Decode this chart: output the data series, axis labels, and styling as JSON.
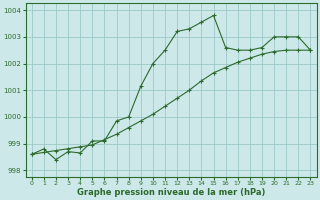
{
  "line1_x": [
    0,
    1,
    2,
    3,
    4,
    5,
    6,
    7,
    8,
    9,
    10,
    11,
    12,
    13,
    14,
    15,
    16,
    17,
    18,
    19,
    20,
    21,
    22,
    23
  ],
  "line1_y": [
    998.6,
    998.8,
    998.4,
    998.7,
    998.65,
    999.1,
    999.1,
    999.85,
    1000.0,
    1001.15,
    1002.0,
    1002.5,
    1003.2,
    1003.3,
    1003.55,
    1003.8,
    1002.6,
    1002.5,
    1002.5,
    1002.6,
    1003.0,
    1003.0,
    1003.0,
    1002.5
  ],
  "line2_x": [
    0,
    1,
    2,
    3,
    4,
    5,
    6,
    7,
    8,
    9,
    10,
    11,
    12,
    13,
    14,
    15,
    16,
    17,
    18,
    19,
    20,
    21,
    22,
    23
  ],
  "line2_y": [
    998.6,
    998.67,
    998.74,
    998.81,
    998.88,
    998.95,
    999.15,
    999.35,
    999.6,
    999.85,
    1000.1,
    1000.4,
    1000.7,
    1001.0,
    1001.35,
    1001.65,
    1001.85,
    1002.05,
    1002.2,
    1002.35,
    1002.45,
    1002.5,
    1002.5,
    1002.5
  ],
  "line_color": "#2d6a2d",
  "bg_color": "#cce8e8",
  "grid_color": "#9dc8c8",
  "xlabel": "Graphe pression niveau de la mer (hPa)",
  "ylim": [
    997.75,
    1004.25
  ],
  "xlim": [
    -0.5,
    23.5
  ],
  "yticks": [
    998,
    999,
    1000,
    1001,
    1002,
    1003,
    1004
  ],
  "xticks": [
    0,
    1,
    2,
    3,
    4,
    5,
    6,
    7,
    8,
    9,
    10,
    11,
    12,
    13,
    14,
    15,
    16,
    17,
    18,
    19,
    20,
    21,
    22,
    23
  ]
}
